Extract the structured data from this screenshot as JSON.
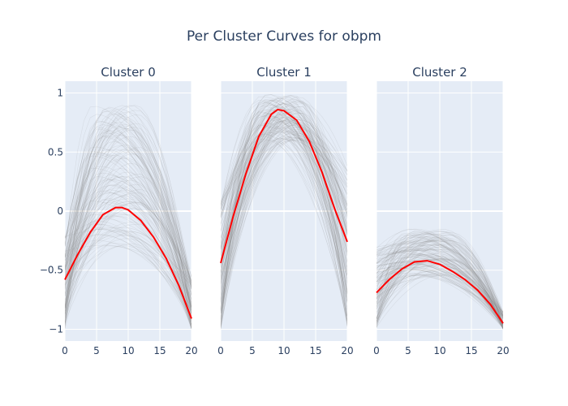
{
  "chart_data": {
    "type": "line",
    "title": "Per Cluster Curves for obpm",
    "x_ticks": [
      0,
      5,
      10,
      15,
      20
    ],
    "y_ticks": [
      1,
      0.5,
      0,
      -0.5,
      -1
    ],
    "y_tick_labels": [
      "1",
      "0.5",
      "0",
      "−0.5",
      "−1"
    ],
    "x_range": [
      0,
      20
    ],
    "y_range": [
      -1.1,
      1.1
    ],
    "grid": true,
    "colors": {
      "plot_bg": "#e5ecf6",
      "grid": "#ffffff",
      "mean_line": "#ff0000",
      "sample_lines": "#888888"
    },
    "panels": [
      {
        "title": "Cluster 0",
        "mean_curve": {
          "x": [
            0,
            2,
            4,
            6,
            8,
            9,
            10,
            12,
            14,
            16,
            18,
            20
          ],
          "y": [
            -0.58,
            -0.37,
            -0.18,
            -0.03,
            0.03,
            0.03,
            0.01,
            -0.08,
            -0.22,
            -0.4,
            -0.63,
            -0.91
          ]
        },
        "samples": {
          "count": 140,
          "y_start": [
            -1.0,
            -0.2
          ],
          "y_end": [
            -1.0,
            -0.55
          ],
          "peak_x": [
            4,
            12
          ],
          "peak_y": [
            -0.3,
            0.9
          ]
        }
      },
      {
        "title": "Cluster 1",
        "mean_curve": {
          "x": [
            0,
            2,
            4,
            6,
            8,
            9,
            10,
            12,
            14,
            16,
            18,
            20
          ],
          "y": [
            -0.44,
            -0.04,
            0.32,
            0.63,
            0.82,
            0.86,
            0.85,
            0.77,
            0.59,
            0.33,
            0.02,
            -0.26
          ]
        },
        "samples": {
          "count": 140,
          "y_start": [
            -1.0,
            0.1
          ],
          "y_end": [
            -1.0,
            0.4
          ],
          "peak_x": [
            6,
            13
          ],
          "peak_y": [
            0.6,
            1.0
          ]
        }
      },
      {
        "title": "Cluster 2",
        "mean_curve": {
          "x": [
            0,
            2,
            4,
            6,
            8,
            10,
            12,
            14,
            16,
            18,
            20
          ],
          "y": [
            -0.69,
            -0.58,
            -0.49,
            -0.43,
            -0.42,
            -0.45,
            -0.51,
            -0.58,
            -0.67,
            -0.79,
            -0.95
          ]
        },
        "samples": {
          "count": 140,
          "y_start": [
            -1.0,
            -0.3
          ],
          "y_end": [
            -1.0,
            -0.85
          ],
          "peak_x": [
            4,
            12
          ],
          "peak_y": [
            -0.55,
            -0.15
          ]
        }
      }
    ]
  }
}
